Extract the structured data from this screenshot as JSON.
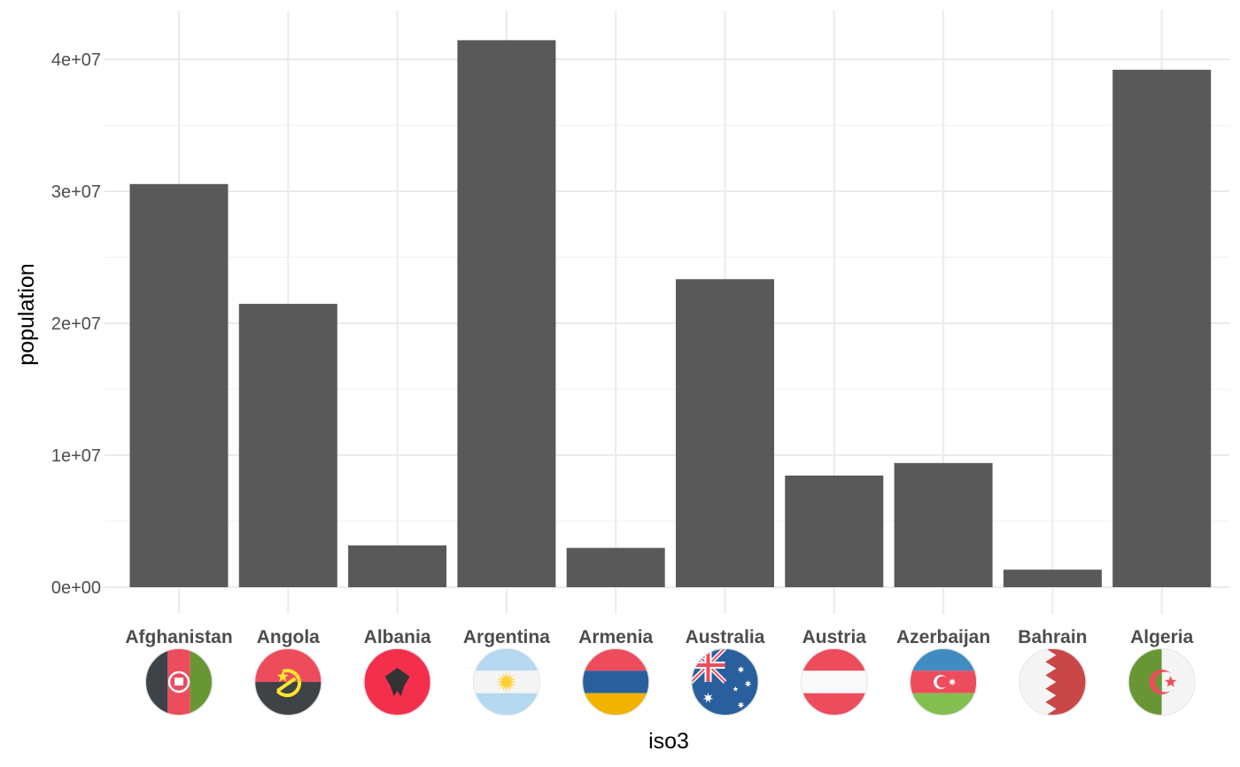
{
  "chart_data": {
    "type": "bar",
    "xlabel": "iso3",
    "ylabel": "population",
    "ylim": [
      0,
      42000000
    ],
    "yticks": [
      0,
      10000000,
      20000000,
      30000000,
      40000000
    ],
    "ytick_labels": [
      "0e+00",
      "1e+07",
      "2e+07",
      "3e+07",
      "4e+07"
    ],
    "grid": true,
    "legend": "none",
    "bar_color": "#595959",
    "categories": [
      "Afghanistan",
      "Angola",
      "Albania",
      "Argentina",
      "Armenia",
      "Australia",
      "Austria",
      "Azerbaijan",
      "Bahrain",
      "Algeria"
    ],
    "values": [
      30550000,
      21470000,
      3170000,
      41450000,
      2980000,
      23340000,
      8460000,
      9410000,
      1330000,
      39210000
    ],
    "flags": [
      {
        "country": "Afghanistan",
        "icon": "afghanistan-flag-icon",
        "colors": [
          "#3e4347",
          "#ed4c5c",
          "#699635"
        ]
      },
      {
        "country": "Angola",
        "icon": "angola-flag-icon",
        "colors": [
          "#ed4c5c",
          "#3e4347",
          "#ffe62e"
        ]
      },
      {
        "country": "Albania",
        "icon": "albania-flag-icon",
        "colors": [
          "#f42f4c",
          "#333333"
        ]
      },
      {
        "country": "Argentina",
        "icon": "argentina-flag-icon",
        "colors": [
          "#b3d8f0",
          "#f5f5f5",
          "#ffce31"
        ]
      },
      {
        "country": "Armenia",
        "icon": "armenia-flag-icon",
        "colors": [
          "#ed4c5c",
          "#2a5f9e",
          "#f2b200"
        ]
      },
      {
        "country": "Australia",
        "icon": "australia-flag-icon",
        "colors": [
          "#2a5f9e",
          "#ed4c5c",
          "#ffffff"
        ]
      },
      {
        "country": "Austria",
        "icon": "austria-flag-icon",
        "colors": [
          "#ed4c5c",
          "#f9f9f9"
        ]
      },
      {
        "country": "Azerbaijan",
        "icon": "azerbaijan-flag-icon",
        "colors": [
          "#428bc1",
          "#ed4c5c",
          "#83bf4f"
        ]
      },
      {
        "country": "Bahrain",
        "icon": "bahrain-flag-icon",
        "colors": [
          "#f5f5f5",
          "#c94747"
        ]
      },
      {
        "country": "Algeria",
        "icon": "algeria-flag-icon",
        "colors": [
          "#699635",
          "#f5f5f5",
          "#ed4c5c"
        ]
      }
    ]
  }
}
